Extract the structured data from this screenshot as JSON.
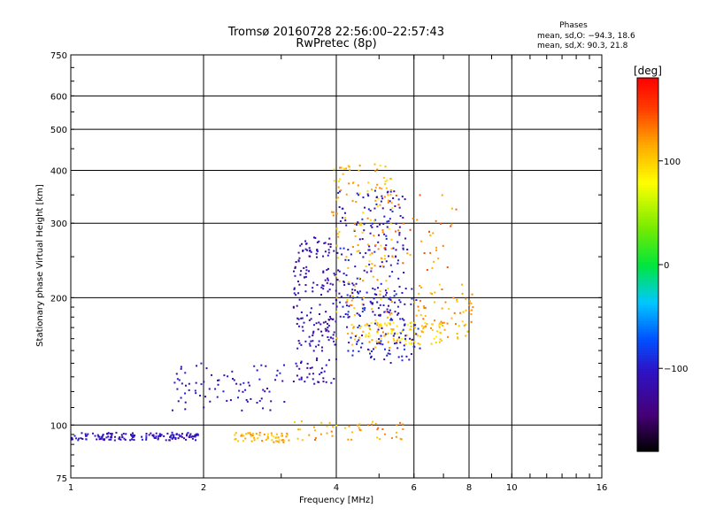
{
  "chart_data": {
    "type": "scatter",
    "title": "Tromsø 20160728 22:56:00–22:57:43",
    "subtitle": "RwPretec (8p)",
    "xlabel": "Frequency [MHz]",
    "ylabel": "Stationary phase Virtual Height [km]",
    "xscale": "log",
    "yscale": "log",
    "xlim": [
      1,
      16
    ],
    "ylim": [
      75,
      750
    ],
    "xticks": [
      1,
      2,
      4,
      6,
      8,
      10,
      16
    ],
    "xtick_labels": [
      "1",
      "2",
      "4",
      "6",
      "8",
      "10",
      "16"
    ],
    "xgrid": [
      2,
      4,
      6,
      8,
      10
    ],
    "yticks": [
      75,
      100,
      200,
      300,
      400,
      500,
      600,
      750
    ],
    "ytick_labels": [
      "75",
      "100",
      "200",
      "300",
      "400",
      "500",
      "600",
      "750"
    ],
    "ygrid": [
      100,
      200,
      300,
      400,
      500,
      600
    ],
    "grid": true,
    "stats": {
      "heading": "Phases",
      "line1": "mean, sd,O: −94.3, 18.6",
      "line2": "mean, sd,X:  90.3, 21.8"
    },
    "colorbar": {
      "label": "[deg]",
      "range": [
        -180,
        180
      ],
      "ticks": [
        100,
        0,
        -100
      ],
      "tick_labels": [
        "100",
        "0",
        "−100"
      ],
      "colormap": "rainbow"
    },
    "point_clusters": [
      {
        "desc": "E-layer trace",
        "x": [
          1.0,
          1.95
        ],
        "y": [
          92,
          96
        ],
        "phase": -110,
        "n": 150
      },
      {
        "desc": "E-layer X trace",
        "x": [
          2.35,
          3.1
        ],
        "y": [
          91,
          96
        ],
        "phase": 110,
        "n": 60
      },
      {
        "desc": "E-layer scatter",
        "x": [
          3.1,
          5.9
        ],
        "y": [
          92,
          103
        ],
        "phase": 120,
        "n": 50
      },
      {
        "desc": "lower F trace O",
        "x": [
          1.7,
          3.1
        ],
        "y": [
          108,
          140
        ],
        "phase": -110,
        "n": 80
      },
      {
        "desc": "F region O",
        "x": [
          3.2,
          4.0
        ],
        "y": [
          125,
          280
        ],
        "phase": -115,
        "n": 200
      },
      {
        "desc": "F region O high",
        "x": [
          4.0,
          5.8
        ],
        "y": [
          180,
          360
        ],
        "phase": -105,
        "n": 180
      },
      {
        "desc": "F region X",
        "x": [
          3.9,
          5.4
        ],
        "y": [
          150,
          420
        ],
        "phase": 110,
        "n": 160
      },
      {
        "desc": "F region X low",
        "x": [
          4.4,
          7.0
        ],
        "y": [
          155,
          175
        ],
        "phase": 100,
        "n": 90
      },
      {
        "desc": "upper O trace",
        "x": [
          4.2,
          6.2
        ],
        "y": [
          140,
          210
        ],
        "phase": -100,
        "n": 120
      },
      {
        "desc": "high freq scatter",
        "x": [
          6.0,
          8.2
        ],
        "y": [
          160,
          215
        ],
        "phase": 115,
        "n": 70
      },
      {
        "desc": "sparse upper scatter",
        "x": [
          5.0,
          7.5
        ],
        "y": [
          230,
          350
        ],
        "phase": 130,
        "n": 40
      }
    ]
  }
}
